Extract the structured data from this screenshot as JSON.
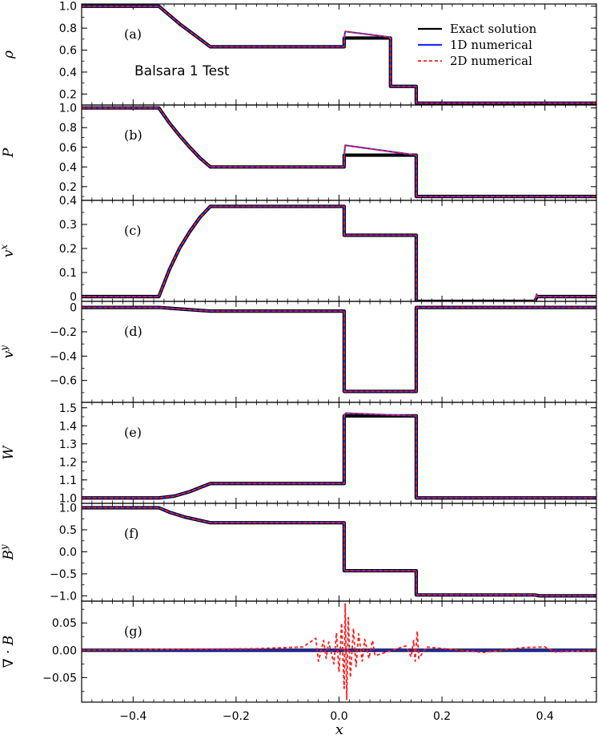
{
  "figure": {
    "xlabel": "x",
    "test_title": "Balsara 1 Test",
    "legend": [
      {
        "label": "Exact solution",
        "color": "#000000",
        "style": "solid"
      },
      {
        "label": "1D numerical",
        "color": "#1f2cff",
        "style": "solid"
      },
      {
        "label": "2D numerical",
        "color": "#ff1a1a",
        "style": "dashed"
      }
    ]
  },
  "chart_data": {
    "type": "line",
    "xlim": [
      -0.5,
      0.5
    ],
    "xticks": [
      -0.4,
      -0.2,
      0.0,
      0.2,
      0.4
    ],
    "xtick_labels": [
      "−0.4",
      "−0.2",
      "0.0",
      "0.2",
      "0.4"
    ],
    "panels": [
      {
        "id": "rho",
        "label": "(a)",
        "ylabel": "ρ",
        "ylim": [
          0.1,
          1.02
        ],
        "yticks": [
          0.2,
          0.4,
          0.6,
          0.8,
          1.0
        ],
        "ytick_labels": [
          "0.2",
          "0.4",
          "0.6",
          "0.8",
          "1.0"
        ],
        "exact": [
          [
            -0.5,
            1.0
          ],
          [
            -0.35,
            1.0
          ],
          [
            -0.33,
            0.92
          ],
          [
            -0.31,
            0.84
          ],
          [
            -0.29,
            0.77
          ],
          [
            -0.27,
            0.7
          ],
          [
            -0.25,
            0.63
          ],
          [
            0.01,
            0.63
          ],
          [
            0.01,
            0.71
          ],
          [
            0.1,
            0.71
          ],
          [
            0.1,
            0.27
          ],
          [
            0.15,
            0.27
          ],
          [
            0.15,
            0.117
          ],
          [
            0.5,
            0.117
          ]
        ],
        "spikes": [
          [
            0.012,
            0.77
          ],
          [
            0.096,
            0.72
          ]
        ]
      },
      {
        "id": "P",
        "label": "(b)",
        "ylabel": "P",
        "ylim": [
          0.06,
          1.03
        ],
        "yticks": [
          0.2,
          0.4,
          0.6,
          0.8,
          1.0
        ],
        "ytick_labels": [
          "0.2",
          "0.4",
          "0.6",
          "0.8",
          "1.0"
        ],
        "exact": [
          [
            -0.5,
            1.0
          ],
          [
            -0.35,
            1.0
          ],
          [
            -0.33,
            0.85
          ],
          [
            -0.31,
            0.72
          ],
          [
            -0.29,
            0.6
          ],
          [
            -0.27,
            0.49
          ],
          [
            -0.25,
            0.4
          ],
          [
            0.01,
            0.4
          ],
          [
            0.01,
            0.52
          ],
          [
            0.15,
            0.52
          ],
          [
            0.15,
            0.1
          ],
          [
            0.5,
            0.1
          ]
        ],
        "spikes": [
          [
            0.012,
            0.62
          ]
        ]
      },
      {
        "id": "vx",
        "label": "(c)",
        "ylabel": "v^x",
        "ylim": [
          -0.02,
          0.4
        ],
        "yticks": [
          0.0,
          0.1,
          0.2,
          0.3,
          0.4
        ],
        "ytick_labels": [
          "0",
          "0.1",
          "0.2",
          "0.3",
          "0.4"
        ],
        "exact": [
          [
            -0.5,
            0.0
          ],
          [
            -0.35,
            0.0
          ],
          [
            -0.33,
            0.11
          ],
          [
            -0.31,
            0.2
          ],
          [
            -0.29,
            0.27
          ],
          [
            -0.27,
            0.33
          ],
          [
            -0.25,
            0.375
          ],
          [
            0.01,
            0.375
          ],
          [
            0.01,
            0.255
          ],
          [
            0.15,
            0.255
          ],
          [
            0.15,
            -0.02
          ],
          [
            0.38,
            -0.02
          ],
          [
            0.385,
            0.0
          ],
          [
            0.5,
            0.0
          ]
        ],
        "spikes": [
          [
            0.384,
            0.01
          ]
        ]
      },
      {
        "id": "vy",
        "label": "(d)",
        "ylabel": "v^y",
        "ylim": [
          -0.78,
          0.05
        ],
        "yticks": [
          -0.6,
          -0.4,
          -0.2,
          0.0
        ],
        "ytick_labels": [
          "−0.6",
          "−0.4",
          "−0.2",
          "0"
        ],
        "exact": [
          [
            -0.5,
            0.0
          ],
          [
            -0.35,
            0.0
          ],
          [
            -0.3,
            -0.015
          ],
          [
            -0.25,
            -0.03
          ],
          [
            0.01,
            -0.03
          ],
          [
            0.01,
            -0.69
          ],
          [
            0.15,
            -0.69
          ],
          [
            0.15,
            0.0
          ],
          [
            0.5,
            0.0
          ]
        ],
        "spikes": []
      },
      {
        "id": "W",
        "label": "(e)",
        "ylabel": "W",
        "ylim": [
          0.97,
          1.53
        ],
        "yticks": [
          1.0,
          1.1,
          1.2,
          1.3,
          1.4,
          1.5
        ],
        "ytick_labels": [
          "1.0",
          "1.1",
          "1.2",
          "1.3",
          "1.4",
          "1.5"
        ],
        "exact": [
          [
            -0.5,
            1.0
          ],
          [
            -0.35,
            1.0
          ],
          [
            -0.32,
            1.01
          ],
          [
            -0.29,
            1.035
          ],
          [
            -0.25,
            1.08
          ],
          [
            0.01,
            1.08
          ],
          [
            0.01,
            1.455
          ],
          [
            0.15,
            1.455
          ],
          [
            0.15,
            1.0
          ],
          [
            0.5,
            1.0
          ]
        ],
        "spikes": [
          [
            0.013,
            1.47
          ]
        ]
      },
      {
        "id": "By",
        "label": "(f)",
        "ylabel": "B^y",
        "ylim": [
          -1.12,
          1.1
        ],
        "yticks": [
          -1.0,
          -0.5,
          0.0,
          0.5,
          1.0
        ],
        "ytick_labels": [
          "−1.0",
          "−0.5",
          "0.0",
          "0.5",
          "1.0"
        ],
        "exact": [
          [
            -0.5,
            1.0
          ],
          [
            -0.35,
            1.0
          ],
          [
            -0.33,
            0.9
          ],
          [
            -0.3,
            0.79
          ],
          [
            -0.25,
            0.66
          ],
          [
            0.01,
            0.66
          ],
          [
            0.01,
            -0.43
          ],
          [
            0.15,
            -0.43
          ],
          [
            0.15,
            -0.98
          ],
          [
            0.38,
            -0.98
          ],
          [
            0.39,
            -1.0
          ],
          [
            0.5,
            -1.0
          ]
        ],
        "spikes": []
      },
      {
        "id": "divB",
        "label": "(g)",
        "ylabel": "∇ · B",
        "ylim": [
          -0.095,
          0.09
        ],
        "yticks": [
          -0.05,
          0.0,
          0.05
        ],
        "ytick_labels": [
          "−0.05",
          "0.00",
          "0.05"
        ],
        "exact": [
          [
            -0.5,
            0.0
          ],
          [
            0.5,
            0.0
          ]
        ],
        "spikes": [],
        "noise_2d": [
          [
            -0.16,
            0.003
          ],
          [
            -0.07,
            0.006
          ],
          [
            -0.045,
            0.022
          ],
          [
            -0.04,
            -0.02
          ],
          [
            -0.03,
            0.018
          ],
          [
            -0.025,
            -0.015
          ],
          [
            -0.02,
            0.015
          ],
          [
            -0.01,
            -0.025
          ],
          [
            -0.005,
            0.032
          ],
          [
            0.0,
            -0.04
          ],
          [
            0.005,
            0.05
          ],
          [
            0.01,
            -0.07
          ],
          [
            0.012,
            0.085
          ],
          [
            0.015,
            -0.09
          ],
          [
            0.018,
            0.06
          ],
          [
            0.022,
            -0.05
          ],
          [
            0.028,
            0.04
          ],
          [
            0.033,
            -0.03
          ],
          [
            0.038,
            0.03
          ],
          [
            0.045,
            -0.02
          ],
          [
            0.05,
            0.02
          ],
          [
            0.058,
            -0.015
          ],
          [
            0.065,
            0.018
          ],
          [
            0.07,
            -0.01
          ],
          [
            0.13,
            0.008
          ],
          [
            0.14,
            -0.012
          ],
          [
            0.145,
            0.018
          ],
          [
            0.148,
            -0.02
          ],
          [
            0.152,
            0.035
          ],
          [
            0.155,
            -0.015
          ],
          [
            0.17,
            0.006
          ],
          [
            0.28,
            -0.004
          ],
          [
            0.36,
            0.005
          ],
          [
            0.4,
            0.006
          ],
          [
            0.42,
            -0.003
          ]
        ]
      }
    ]
  }
}
